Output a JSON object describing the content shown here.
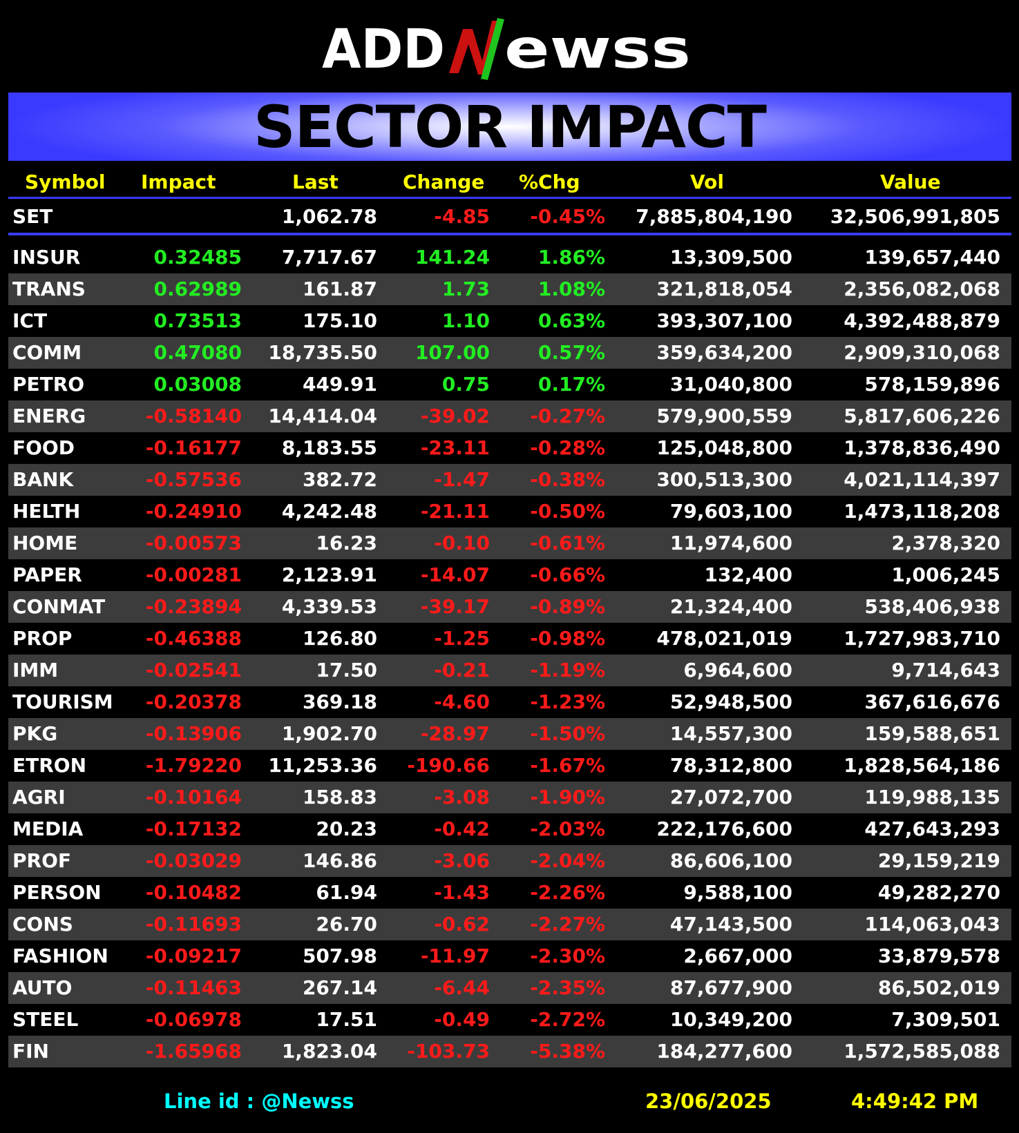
{
  "brand": {
    "logo_text": "ADDNewss"
  },
  "title": "SECTOR IMPACT",
  "columns": {
    "symbol": "Symbol",
    "impact": "Impact",
    "last": "Last",
    "change": "Change",
    "pct_change": "%Chg",
    "vol": "Vol",
    "value": "Value"
  },
  "index_row": {
    "symbol": "SET",
    "impact": "",
    "last": "1,062.78",
    "change": "-4.85",
    "pct_change": "-0.45%",
    "vol": "7,885,804,190",
    "value": "32,506,991,805",
    "direction": "neg"
  },
  "sectors": [
    {
      "symbol": "INSUR",
      "impact": "0.32485",
      "last": "7,717.67",
      "change": "141.24",
      "pct_change": "1.86%",
      "vol": "13,309,500",
      "value": "139,657,440",
      "direction": "pos"
    },
    {
      "symbol": "TRANS",
      "impact": "0.62989",
      "last": "161.87",
      "change": "1.73",
      "pct_change": "1.08%",
      "vol": "321,818,054",
      "value": "2,356,082,068",
      "direction": "pos"
    },
    {
      "symbol": "ICT",
      "impact": "0.73513",
      "last": "175.10",
      "change": "1.10",
      "pct_change": "0.63%",
      "vol": "393,307,100",
      "value": "4,392,488,879",
      "direction": "pos"
    },
    {
      "symbol": "COMM",
      "impact": "0.47080",
      "last": "18,735.50",
      "change": "107.00",
      "pct_change": "0.57%",
      "vol": "359,634,200",
      "value": "2,909,310,068",
      "direction": "pos"
    },
    {
      "symbol": "PETRO",
      "impact": "0.03008",
      "last": "449.91",
      "change": "0.75",
      "pct_change": "0.17%",
      "vol": "31,040,800",
      "value": "578,159,896",
      "direction": "pos"
    },
    {
      "symbol": "ENERG",
      "impact": "-0.58140",
      "last": "14,414.04",
      "change": "-39.02",
      "pct_change": "-0.27%",
      "vol": "579,900,559",
      "value": "5,817,606,226",
      "direction": "neg"
    },
    {
      "symbol": "FOOD",
      "impact": "-0.16177",
      "last": "8,183.55",
      "change": "-23.11",
      "pct_change": "-0.28%",
      "vol": "125,048,800",
      "value": "1,378,836,490",
      "direction": "neg"
    },
    {
      "symbol": "BANK",
      "impact": "-0.57536",
      "last": "382.72",
      "change": "-1.47",
      "pct_change": "-0.38%",
      "vol": "300,513,300",
      "value": "4,021,114,397",
      "direction": "neg"
    },
    {
      "symbol": "HELTH",
      "impact": "-0.24910",
      "last": "4,242.48",
      "change": "-21.11",
      "pct_change": "-0.50%",
      "vol": "79,603,100",
      "value": "1,473,118,208",
      "direction": "neg"
    },
    {
      "symbol": "HOME",
      "impact": "-0.00573",
      "last": "16.23",
      "change": "-0.10",
      "pct_change": "-0.61%",
      "vol": "11,974,600",
      "value": "2,378,320",
      "direction": "neg"
    },
    {
      "symbol": "PAPER",
      "impact": "-0.00281",
      "last": "2,123.91",
      "change": "-14.07",
      "pct_change": "-0.66%",
      "vol": "132,400",
      "value": "1,006,245",
      "direction": "neg"
    },
    {
      "symbol": "CONMAT",
      "impact": "-0.23894",
      "last": "4,339.53",
      "change": "-39.17",
      "pct_change": "-0.89%",
      "vol": "21,324,400",
      "value": "538,406,938",
      "direction": "neg"
    },
    {
      "symbol": "PROP",
      "impact": "-0.46388",
      "last": "126.80",
      "change": "-1.25",
      "pct_change": "-0.98%",
      "vol": "478,021,019",
      "value": "1,727,983,710",
      "direction": "neg"
    },
    {
      "symbol": "IMM",
      "impact": "-0.02541",
      "last": "17.50",
      "change": "-0.21",
      "pct_change": "-1.19%",
      "vol": "6,964,600",
      "value": "9,714,643",
      "direction": "neg"
    },
    {
      "symbol": "TOURISM",
      "impact": "-0.20378",
      "last": "369.18",
      "change": "-4.60",
      "pct_change": "-1.23%",
      "vol": "52,948,500",
      "value": "367,616,676",
      "direction": "neg"
    },
    {
      "symbol": "PKG",
      "impact": "-0.13906",
      "last": "1,902.70",
      "change": "-28.97",
      "pct_change": "-1.50%",
      "vol": "14,557,300",
      "value": "159,588,651",
      "direction": "neg"
    },
    {
      "symbol": "ETRON",
      "impact": "-1.79220",
      "last": "11,253.36",
      "change": "-190.66",
      "pct_change": "-1.67%",
      "vol": "78,312,800",
      "value": "1,828,564,186",
      "direction": "neg"
    },
    {
      "symbol": "AGRI",
      "impact": "-0.10164",
      "last": "158.83",
      "change": "-3.08",
      "pct_change": "-1.90%",
      "vol": "27,072,700",
      "value": "119,988,135",
      "direction": "neg"
    },
    {
      "symbol": "MEDIA",
      "impact": "-0.17132",
      "last": "20.23",
      "change": "-0.42",
      "pct_change": "-2.03%",
      "vol": "222,176,600",
      "value": "427,643,293",
      "direction": "neg"
    },
    {
      "symbol": "PROF",
      "impact": "-0.03029",
      "last": "146.86",
      "change": "-3.06",
      "pct_change": "-2.04%",
      "vol": "86,606,100",
      "value": "29,159,219",
      "direction": "neg"
    },
    {
      "symbol": "PERSON",
      "impact": "-0.10482",
      "last": "61.94",
      "change": "-1.43",
      "pct_change": "-2.26%",
      "vol": "9,588,100",
      "value": "49,282,270",
      "direction": "neg"
    },
    {
      "symbol": "CONS",
      "impact": "-0.11693",
      "last": "26.70",
      "change": "-0.62",
      "pct_change": "-2.27%",
      "vol": "47,143,500",
      "value": "114,063,043",
      "direction": "neg"
    },
    {
      "symbol": "FASHION",
      "impact": "-0.09217",
      "last": "507.98",
      "change": "-11.97",
      "pct_change": "-2.30%",
      "vol": "2,667,000",
      "value": "33,879,578",
      "direction": "neg"
    },
    {
      "symbol": "AUTO",
      "impact": "-0.11463",
      "last": "267.14",
      "change": "-6.44",
      "pct_change": "-2.35%",
      "vol": "87,677,900",
      "value": "86,502,019",
      "direction": "neg"
    },
    {
      "symbol": "STEEL",
      "impact": "-0.06978",
      "last": "17.51",
      "change": "-0.49",
      "pct_change": "-2.72%",
      "vol": "10,349,200",
      "value": "7,309,501",
      "direction": "neg"
    },
    {
      "symbol": "FIN",
      "impact": "-1.65968",
      "last": "1,823.04",
      "change": "-103.73",
      "pct_change": "-5.38%",
      "vol": "184,277,600",
      "value": "1,572,585,088",
      "direction": "neg"
    }
  ],
  "footer": {
    "line_id": "Line id  : @Newss",
    "date": "23/06/2025",
    "time": "4:49:42 PM"
  },
  "colors": {
    "positive": "#22ee22",
    "negative": "#ff1a1a",
    "header_text": "#ffff00",
    "accent": "#3a3aff",
    "line_id": "#00ffff",
    "row_alt": "#3c3c3c"
  }
}
